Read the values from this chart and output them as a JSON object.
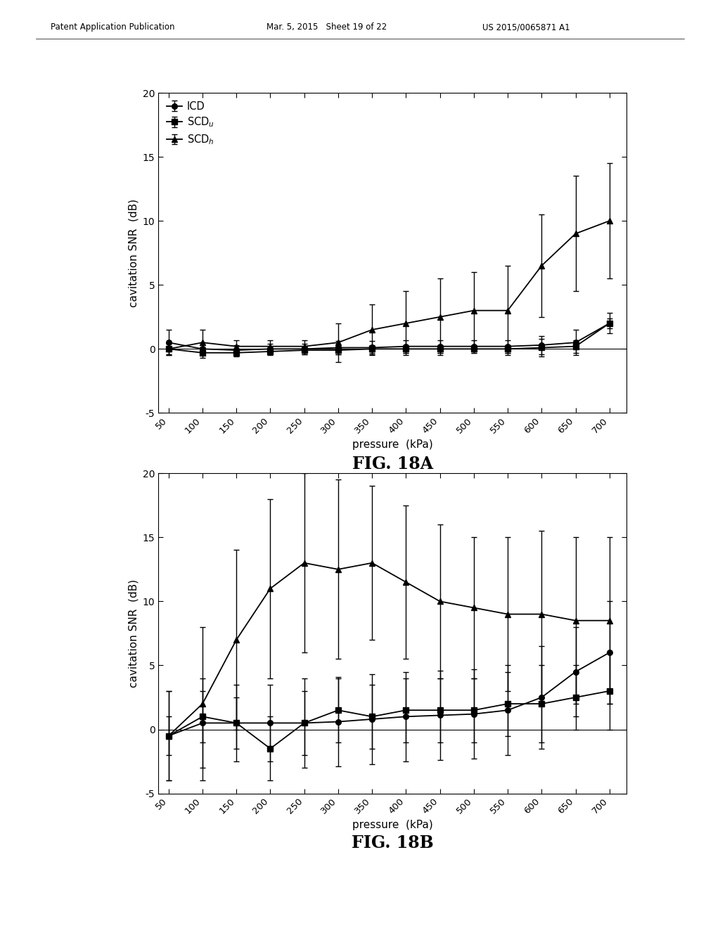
{
  "x": [
    50,
    100,
    150,
    200,
    250,
    300,
    350,
    400,
    450,
    500,
    550,
    600,
    650,
    700
  ],
  "fig18A": {
    "ICD_y": [
      0.5,
      0.0,
      -0.1,
      0.0,
      0.0,
      0.1,
      0.1,
      0.2,
      0.2,
      0.2,
      0.2,
      0.3,
      0.5,
      2.0
    ],
    "ICD_yerr": [
      1.0,
      0.5,
      0.4,
      0.4,
      0.4,
      0.5,
      0.5,
      0.5,
      0.5,
      0.5,
      0.5,
      0.7,
      1.0,
      0.8
    ],
    "SCDu_y": [
      0.0,
      -0.3,
      -0.3,
      -0.2,
      -0.1,
      -0.1,
      0.0,
      0.0,
      0.0,
      0.0,
      0.0,
      0.1,
      0.2,
      2.0
    ],
    "SCDu_yerr": [
      0.4,
      0.4,
      0.3,
      0.3,
      0.3,
      0.3,
      0.3,
      0.3,
      0.3,
      0.3,
      0.3,
      0.7,
      0.5,
      0.4
    ],
    "SCDh_y": [
      0.0,
      0.5,
      0.2,
      0.2,
      0.2,
      0.5,
      1.5,
      2.0,
      2.5,
      3.0,
      3.0,
      6.5,
      9.0,
      10.0
    ],
    "SCDh_yerr": [
      0.5,
      1.0,
      0.5,
      0.5,
      0.5,
      1.5,
      2.0,
      2.5,
      3.0,
      3.0,
      3.5,
      4.0,
      4.5,
      4.5
    ],
    "ylabel": "cavitation SNR  (dB)",
    "xlabel": "pressure  (kPa)",
    "title": "FIG. 18A",
    "ylim": [
      -5,
      20
    ],
    "yticks": [
      -5,
      0,
      5,
      10,
      15,
      20
    ]
  },
  "fig18B": {
    "ICD_y": [
      -0.5,
      0.5,
      0.5,
      0.5,
      0.5,
      0.6,
      0.8,
      1.0,
      1.1,
      1.2,
      1.5,
      2.5,
      4.5,
      6.0
    ],
    "ICD_yerr": [
      3.5,
      3.5,
      3.0,
      3.0,
      3.5,
      3.5,
      3.5,
      3.5,
      3.5,
      3.5,
      3.5,
      4.0,
      3.5,
      4.0
    ],
    "SCDu_y": [
      -0.5,
      1.0,
      0.5,
      -1.5,
      0.5,
      1.5,
      1.0,
      1.5,
      1.5,
      1.5,
      2.0,
      2.0,
      2.5,
      3.0
    ],
    "SCDu_yerr": [
      1.5,
      2.0,
      2.0,
      2.5,
      2.5,
      2.5,
      2.5,
      2.5,
      2.5,
      2.5,
      2.5,
      3.0,
      2.5,
      3.0
    ],
    "SCDh_y": [
      -0.5,
      2.0,
      7.0,
      11.0,
      13.0,
      12.5,
      13.0,
      11.5,
      10.0,
      9.5,
      9.0,
      9.0,
      8.5,
      8.5
    ],
    "SCDh_yerr": [
      3.5,
      6.0,
      7.0,
      7.0,
      7.0,
      7.0,
      6.0,
      6.0,
      6.0,
      5.5,
      6.0,
      6.5,
      6.5,
      6.5
    ],
    "ylabel": "cavitation SNR  (dB)",
    "xlabel": "pressure  (kPa)",
    "title": "FIG. 18B",
    "ylim": [
      -5,
      20
    ],
    "yticks": [
      -5,
      0,
      5,
      10,
      15,
      20
    ]
  },
  "header_left": "Patent Application Publication",
  "header_mid": "Mar. 5, 2015   Sheet 19 of 22",
  "header_right": "US 2015/0065871 A1",
  "background_color": "#ffffff",
  "xticks": [
    50,
    100,
    150,
    200,
    250,
    300,
    350,
    400,
    450,
    500,
    550,
    600,
    650,
    700
  ]
}
